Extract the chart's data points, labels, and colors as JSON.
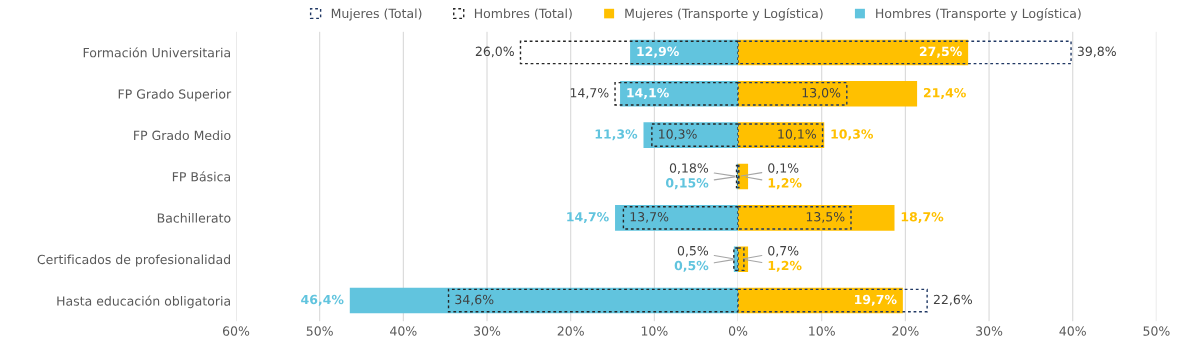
{
  "chart_data": [
    {
      "type": "bar",
      "orientation": "horizontal",
      "legend": "top",
      "grid": "x",
      "categories": [
        "Formación Universitaria",
        "FP Grado Superior",
        "FP Grado Medio",
        "FP Básica",
        "Bachillerato",
        "Certificados de profesionalidad",
        "Hasta educación obligatoria"
      ],
      "xlim": [
        60,
        0
      ],
      "xticks": [
        {
          "value": 60,
          "label": "60%"
        },
        {
          "value": 50,
          "label": "50%"
        },
        {
          "value": 40,
          "label": "40%"
        },
        {
          "value": 30,
          "label": "30%"
        },
        {
          "value": 20,
          "label": "20%"
        },
        {
          "value": 10,
          "label": "10%"
        },
        {
          "value": 0,
          "label": "0%"
        }
      ],
      "series": [
        {
          "name": "Hombres (Total)",
          "color": "#262626",
          "line_style": "dashed",
          "values": [
            26.0,
            14.7,
            10.3,
            0.18,
            13.7,
            0.5,
            34.6
          ],
          "value_labels": [
            "26,0%",
            "14,7%",
            "10,3%",
            "0,18%",
            "13,7%",
            "0,5%",
            "34,6%"
          ]
        },
        {
          "name": "Hombres (Transporte y Logística)",
          "color": "#61c4de",
          "values": [
            12.9,
            14.1,
            11.3,
            0.15,
            14.7,
            0.5,
            46.4
          ],
          "value_labels": [
            "12,9%",
            "14,1%",
            "11,3%",
            "0,15%",
            "14,7%",
            "0,5%",
            "46,4%"
          ]
        }
      ]
    },
    {
      "type": "bar",
      "orientation": "horizontal",
      "legend": "top",
      "grid": "x",
      "tick_labels": "x",
      "categories": [
        null,
        null,
        null,
        null,
        null,
        null,
        null
      ],
      "xlim": [
        0,
        50
      ],
      "xticks": [
        {
          "value": 10,
          "label": "10%"
        },
        {
          "value": 20,
          "label": "20%"
        },
        {
          "value": 30,
          "label": "30%"
        },
        {
          "value": 40,
          "label": "40%"
        },
        {
          "value": 50,
          "label": "50%"
        }
      ],
      "series": [
        {
          "name": "Mujeres (Total)",
          "color": "#203864",
          "line_style": "dashed",
          "values": [
            39.8,
            13.0,
            10.1,
            0.1,
            13.5,
            0.7,
            22.6
          ],
          "value_labels": [
            "39,8%",
            "13,0%",
            "10,1%",
            "0,1%",
            "13,5%",
            "0,7%",
            "22,6%"
          ]
        },
        {
          "name": "Mujeres (Transporte y Logística)",
          "color": "#ffc000",
          "values": [
            27.5,
            21.4,
            10.3,
            1.2,
            18.7,
            1.2,
            19.7
          ],
          "value_labels": [
            "27,5%",
            "21,4%",
            "10,3%",
            "1,2%",
            "18,7%",
            "1,2%",
            "19,7%"
          ]
        }
      ]
    }
  ]
}
